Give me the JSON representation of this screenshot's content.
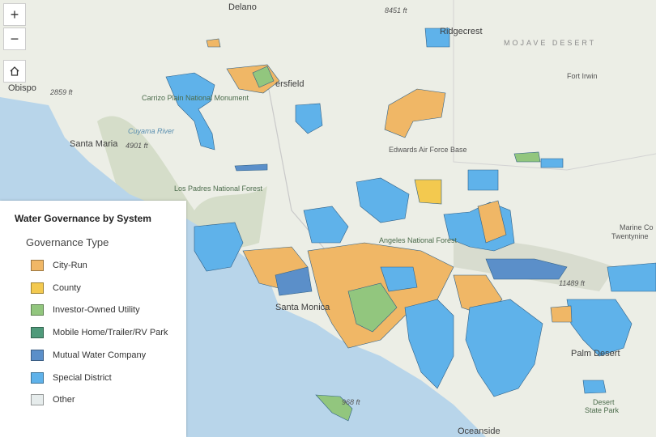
{
  "controls": {
    "zoom_in": "+",
    "zoom_out": "−"
  },
  "legend": {
    "title": "Water Governance by System",
    "subtitle": "Governance Type",
    "items": [
      {
        "label": "City-Run",
        "color": "#f0b766"
      },
      {
        "label": "County",
        "color": "#f3c94f"
      },
      {
        "label": "Investor-Owned Utility",
        "color": "#92c67e"
      },
      {
        "label": "Mobile Home/Trailer/RV Park",
        "color": "#4f9a7a"
      },
      {
        "label": "Mutual Water Company",
        "color": "#5b8fc9"
      },
      {
        "label": "Special District",
        "color": "#5fb2ea"
      },
      {
        "label": "Other",
        "color": "#e6ecec"
      }
    ]
  },
  "places": [
    "Delano",
    "8451 ft",
    "Ridgecrest",
    "MOJAVE DESERT",
    "Fort Irwin",
    "ersfield",
    "Obispo",
    "2859 ft",
    "Carrizo Plain National Monument",
    "Cuyama River",
    "Santa Maria",
    "4901 ft",
    "Edwards Air Force Base",
    "Los Padres National Forest",
    "Angeles National Forest",
    "Santa Monica",
    "Palm Desert",
    "Oceanside",
    "11489 ft",
    "968 ft",
    "Marine Co",
    "Twentynine",
    "Desert",
    "State Park"
  ]
}
